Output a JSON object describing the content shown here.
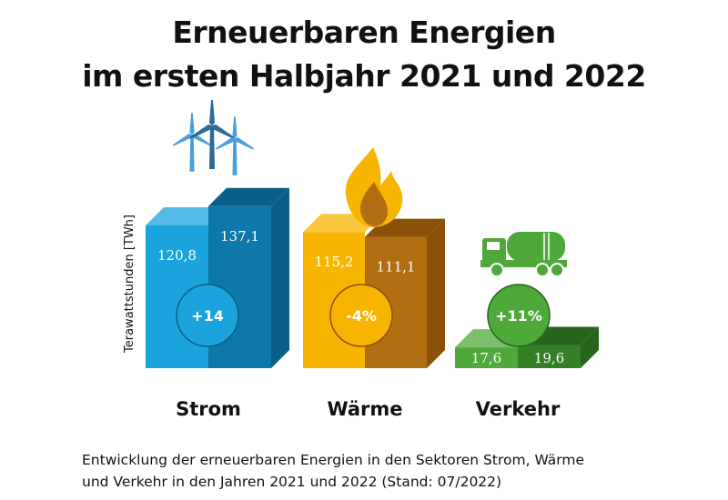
{
  "title_line1": "Erneuerbaren Energien",
  "title_line2": "im ersten Halbjahr 2021 und 2022",
  "caption_line1": "Entwicklung der erneuerbaren Energien in den Sektoren Strom, Wärme",
  "caption_line2": "und Verkehr in den Jahren 2021 und 2022 (Stand: 07/2022)",
  "chart_data": {
    "type": "bar",
    "ylabel": "Terawattstunden [TWh]",
    "categories": [
      "Strom",
      "Wärme",
      "Verkehr"
    ],
    "series": [
      {
        "values": [
          120.8,
          115.2,
          17.6
        ]
      },
      {
        "values": [
          137.1,
          111.1,
          19.6
        ]
      }
    ],
    "value_labels": [
      [
        "120,8",
        "137,1"
      ],
      [
        "115,2",
        "111,1"
      ],
      [
        "17,6",
        "19,6"
      ]
    ],
    "change_labels": [
      "+14",
      "-4%",
      "+11%"
    ],
    "icons": [
      "wind-turbine-icon",
      "flame-icon",
      "tanker-truck-icon"
    ],
    "colors": {
      "strom": [
        "#1aa3dd",
        "#0f78aa",
        "#0a5f88"
      ],
      "waerme": [
        "#f7b400",
        "#b06e10",
        "#8a5208"
      ],
      "verkehr": [
        "#4fa83a",
        "#357f27",
        "#27651c"
      ]
    }
  }
}
